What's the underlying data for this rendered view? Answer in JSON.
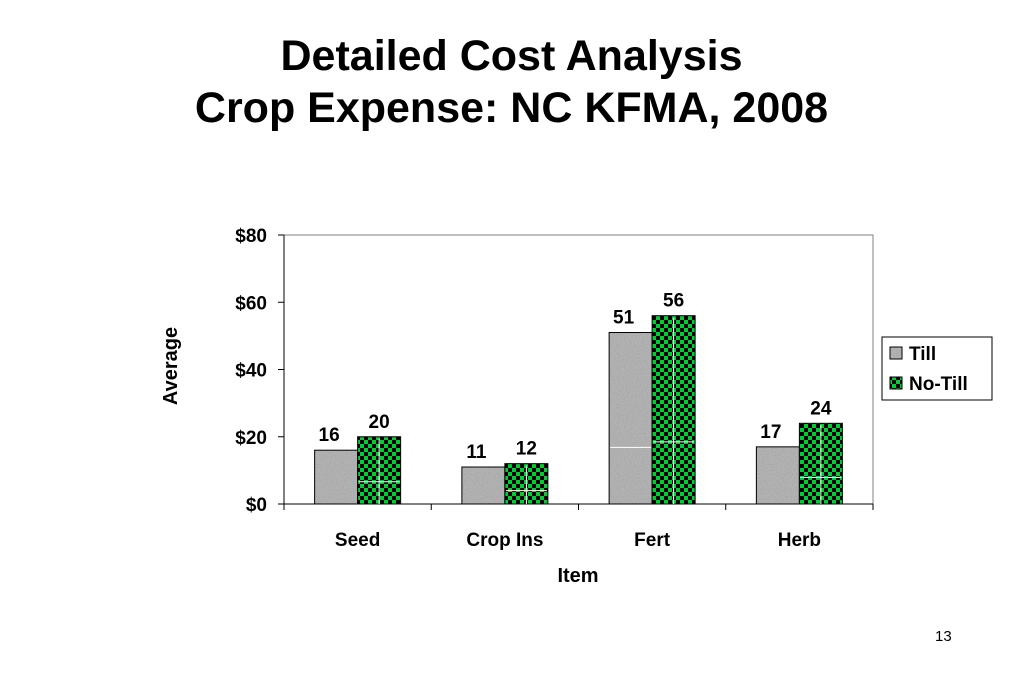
{
  "slide": {
    "title_line1": "Detailed Cost Analysis",
    "title_line2": "Crop Expense: NC KFMA, 2008",
    "page_number": "13"
  },
  "chart_data": {
    "type": "bar",
    "categories": [
      "Seed",
      "Crop Ins",
      "Fert",
      "Herb"
    ],
    "series": [
      {
        "name": "Till",
        "values": [
          16,
          11,
          51,
          17
        ],
        "data_labels": [
          "16",
          "11",
          "51",
          "17"
        ],
        "fill": "granite-gray"
      },
      {
        "name": "No-Till",
        "values": [
          20,
          12,
          56,
          24
        ],
        "data_labels": [
          "20",
          "12",
          "56",
          "24"
        ],
        "fill": "green-black-checker"
      }
    ],
    "xlabel": "Item",
    "ylabel": "Average",
    "ylim": [
      0,
      80
    ],
    "yticks": [
      0,
      20,
      40,
      60,
      80
    ],
    "ytick_labels": [
      "$0",
      "$20",
      "$40",
      "$60",
      "$80"
    ],
    "legend_position": "right",
    "grid": false,
    "colors": {
      "till": "#a9a9a9",
      "no_till_green": "#00cc33",
      "no_till_dark": "#000000"
    }
  }
}
